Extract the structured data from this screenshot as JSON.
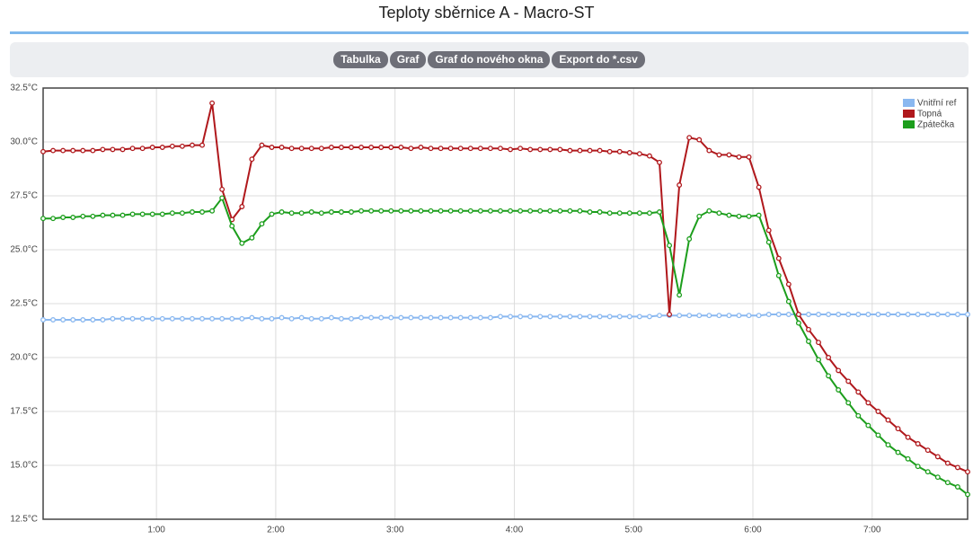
{
  "header": {
    "title": "Teploty sběrnice A - Macro-ST"
  },
  "toolbar": {
    "buttons": [
      "Tabulka",
      "Graf",
      "Graf do nového okna",
      "Export do *.csv"
    ]
  },
  "chart_data": {
    "type": "line",
    "grid": true,
    "legend": "top-right",
    "xlim": [
      3,
      468
    ],
    "ylim": [
      12.5,
      32.5
    ],
    "xticks": [
      {
        "value": 60,
        "label": "1:00"
      },
      {
        "value": 120,
        "label": "2:00"
      },
      {
        "value": 180,
        "label": "3:00"
      },
      {
        "value": 240,
        "label": "4:00"
      },
      {
        "value": 300,
        "label": "5:00"
      },
      {
        "value": 360,
        "label": "6:00"
      },
      {
        "value": 420,
        "label": "7:00"
      }
    ],
    "yticks": [
      {
        "value": 12.5,
        "label": "12.5°C"
      },
      {
        "value": 15,
        "label": "15.0°C"
      },
      {
        "value": 17.5,
        "label": "17.5°C"
      },
      {
        "value": 20,
        "label": "20.0°C"
      },
      {
        "value": 22.5,
        "label": "22.5°C"
      },
      {
        "value": 25,
        "label": "25.0°C"
      },
      {
        "value": 27.5,
        "label": "27.5°C"
      },
      {
        "value": 30,
        "label": "30.0°C"
      },
      {
        "value": 32.5,
        "label": "32.5°C"
      }
    ],
    "x": [
      3,
      8,
      13,
      18,
      23,
      28,
      33,
      38,
      43,
      48,
      53,
      58,
      63,
      68,
      73,
      78,
      83,
      88,
      93,
      98,
      103,
      108,
      113,
      118,
      123,
      128,
      133,
      138,
      143,
      148,
      153,
      158,
      163,
      168,
      173,
      178,
      183,
      188,
      193,
      198,
      203,
      208,
      213,
      218,
      223,
      228,
      233,
      238,
      243,
      248,
      253,
      258,
      263,
      268,
      273,
      278,
      283,
      288,
      293,
      298,
      303,
      308,
      313,
      318,
      323,
      328,
      333,
      338,
      343,
      348,
      353,
      358,
      363,
      368,
      373,
      378,
      383,
      388,
      393,
      398,
      403,
      408,
      413,
      418,
      423,
      428,
      433,
      438,
      443,
      448,
      453,
      458,
      463,
      468
    ],
    "series": [
      {
        "name": "Vnitřní ref",
        "color": "#8ab8f0",
        "values": [
          21.75,
          21.75,
          21.75,
          21.75,
          21.75,
          21.75,
          21.75,
          21.8,
          21.8,
          21.8,
          21.8,
          21.8,
          21.8,
          21.8,
          21.8,
          21.8,
          21.8,
          21.8,
          21.8,
          21.8,
          21.8,
          21.85,
          21.8,
          21.8,
          21.85,
          21.8,
          21.85,
          21.8,
          21.8,
          21.85,
          21.8,
          21.8,
          21.85,
          21.85,
          21.85,
          21.85,
          21.85,
          21.85,
          21.85,
          21.85,
          21.85,
          21.85,
          21.85,
          21.85,
          21.85,
          21.85,
          21.9,
          21.9,
          21.9,
          21.9,
          21.9,
          21.9,
          21.9,
          21.9,
          21.9,
          21.9,
          21.9,
          21.9,
          21.9,
          21.9,
          21.9,
          21.9,
          21.95,
          21.95,
          21.95,
          21.95,
          21.95,
          21.95,
          21.95,
          21.95,
          21.95,
          21.95,
          21.95,
          22.0,
          22.0,
          22.0,
          22.0,
          22.0,
          22.0,
          22.0,
          22.0,
          22.0,
          22.0,
          22.0,
          22.0,
          22.0,
          22.0,
          22.0,
          22.0,
          22.0,
          22.0,
          22.0,
          22.0,
          22.0
        ]
      },
      {
        "name": "Topná",
        "color": "#b0181c",
        "values": [
          29.55,
          29.6,
          29.6,
          29.6,
          29.6,
          29.6,
          29.65,
          29.65,
          29.65,
          29.7,
          29.7,
          29.75,
          29.75,
          29.8,
          29.8,
          29.85,
          29.85,
          31.8,
          27.8,
          26.4,
          27.0,
          29.2,
          29.85,
          29.75,
          29.75,
          29.7,
          29.7,
          29.7,
          29.7,
          29.75,
          29.75,
          29.75,
          29.75,
          29.75,
          29.75,
          29.75,
          29.75,
          29.7,
          29.75,
          29.7,
          29.7,
          29.7,
          29.7,
          29.7,
          29.7,
          29.7,
          29.7,
          29.65,
          29.7,
          29.65,
          29.65,
          29.65,
          29.65,
          29.6,
          29.6,
          29.6,
          29.6,
          29.55,
          29.55,
          29.5,
          29.45,
          29.35,
          29.05,
          22.0,
          28.0,
          30.2,
          30.1,
          29.6,
          29.4,
          29.4,
          29.3,
          29.3,
          27.9,
          25.9,
          24.6,
          23.4,
          22.0,
          21.3,
          20.7,
          20.0,
          19.4,
          18.9,
          18.4,
          17.9,
          17.5,
          17.1,
          16.7,
          16.3,
          16.0,
          15.7,
          15.4,
          15.1,
          14.9,
          14.7
        ]
      },
      {
        "name": "Zpátečka",
        "color": "#1c9e1c",
        "values": [
          26.45,
          26.45,
          26.5,
          26.5,
          26.55,
          26.55,
          26.6,
          26.6,
          26.6,
          26.65,
          26.65,
          26.65,
          26.65,
          26.7,
          26.7,
          26.75,
          26.75,
          26.8,
          27.4,
          26.1,
          25.3,
          25.55,
          26.2,
          26.65,
          26.75,
          26.7,
          26.7,
          26.75,
          26.7,
          26.75,
          26.75,
          26.75,
          26.8,
          26.8,
          26.8,
          26.8,
          26.8,
          26.8,
          26.8,
          26.8,
          26.8,
          26.8,
          26.8,
          26.8,
          26.8,
          26.8,
          26.8,
          26.8,
          26.8,
          26.8,
          26.8,
          26.8,
          26.8,
          26.8,
          26.8,
          26.75,
          26.75,
          26.7,
          26.7,
          26.7,
          26.7,
          26.7,
          26.75,
          25.2,
          22.9,
          25.5,
          26.55,
          26.8,
          26.7,
          26.6,
          26.55,
          26.55,
          26.6,
          25.35,
          23.8,
          22.6,
          21.6,
          20.75,
          19.9,
          19.15,
          18.5,
          17.9,
          17.3,
          16.85,
          16.4,
          15.95,
          15.6,
          15.3,
          14.95,
          14.7,
          14.45,
          14.2,
          14.0,
          13.65
        ]
      }
    ]
  }
}
